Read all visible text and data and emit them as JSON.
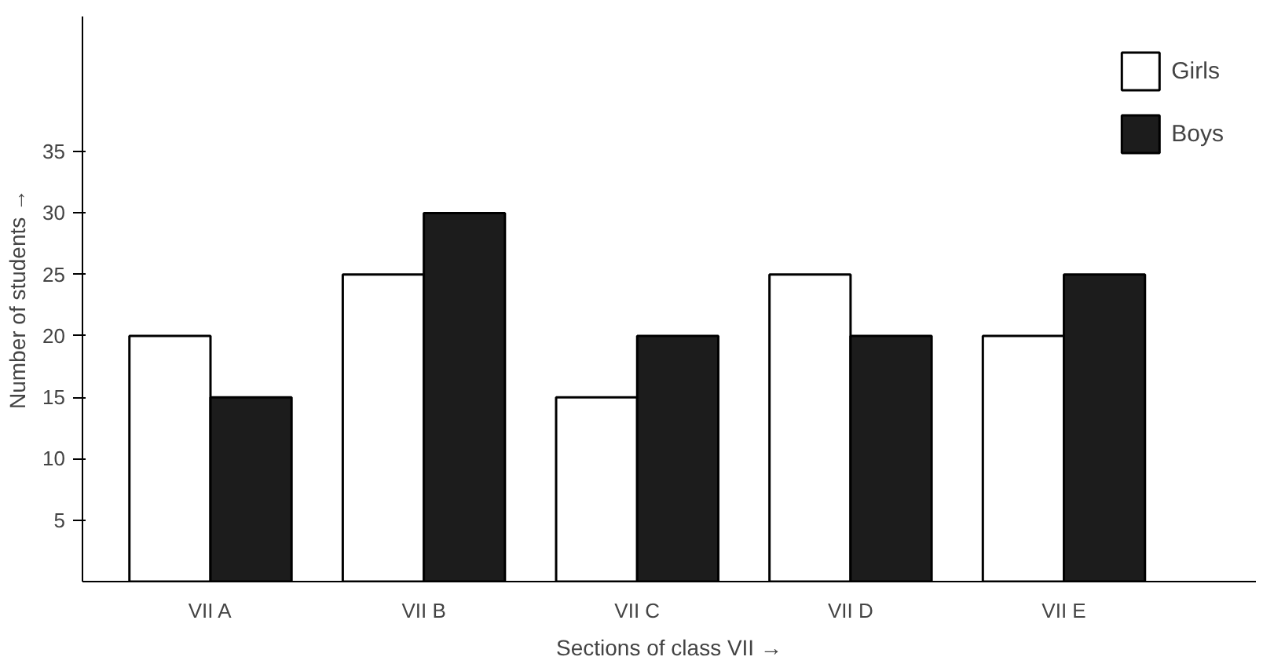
{
  "chart_data": {
    "type": "bar",
    "xlabel": "Sections of class VII →",
    "ylabel": "Number of students →",
    "categories": [
      "VII A",
      "VII B",
      "VII C",
      "VII D",
      "VII E"
    ],
    "series": [
      {
        "name": "Girls",
        "color": "#ffffff",
        "values": [
          20,
          25,
          15,
          25,
          20
        ]
      },
      {
        "name": "Boys",
        "color": "#1c1c1c",
        "values": [
          15,
          30,
          20,
          20,
          25
        ]
      }
    ],
    "ylim": [
      0,
      46
    ],
    "yticks": [
      5,
      10,
      15,
      20,
      25,
      30,
      35
    ],
    "grid": false,
    "legend": "top right"
  }
}
